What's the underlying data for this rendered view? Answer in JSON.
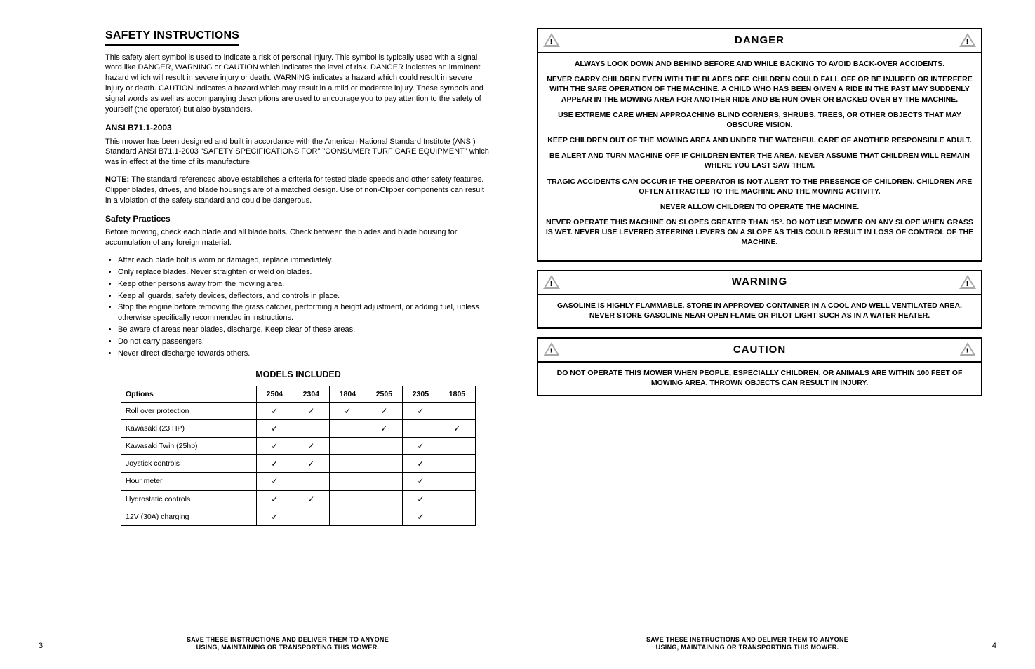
{
  "left": {
    "heading": "SAFETY INSTRUCTIONS",
    "intro": "This safety alert symbol is used to indicate a risk of personal injury. This symbol is typically used with a signal word like DANGER, WARNING or CAUTION which indicates the level of risk. DANGER indicates an imminent hazard which will result in severe injury or death. WARNING indicates a hazard which could result in severe injury or death. CAUTION indicates a hazard which may result in a mild or moderate injury. These symbols and signal words as well as accompanying descriptions are used to encourage you to pay attention to the safety of yourself (the operator) but also bystanders.",
    "section1_title": "ANSI B71.1-2003",
    "section1_note": "NOTE: ",
    "section1_note_body": "The standard referenced above establishes a criteria for tested blade speeds and other safety features. Clipper blades, drives, and blade housings are of a matched design. Use of non-Clipper components can result in a violation of the safety standard and could be dangerous.",
    "section2_lead": "This mower has been designed and built in accordance with the American National Standard Institute (ANSI) Standard ANSI B71.1-2003 \"SAFETY SPECIFICATIONS FOR\" \"CONSUMER TURF CARE EQUIPMENT\" which was in effect at the time of its manufacture.",
    "section3_title": "Safety Practices",
    "section3_body": "Before mowing, check each blade and all blade bolts. Check between the blades and blade housing for accumulation of any foreign material.",
    "table_title": "MODELS INCLUDED",
    "table": {
      "col_header": "Options",
      "cols": [
        "2504",
        "2304",
        "1804",
        "2505",
        "2305",
        "1805"
      ],
      "rows": [
        {
          "label": "Roll over protection",
          "checks": [
            true,
            true,
            true,
            true,
            true,
            false
          ]
        },
        {
          "label": "Kawasaki (23 HP)",
          "checks": [
            true,
            false,
            false,
            true,
            false,
            true
          ]
        },
        {
          "label": "Kawasaki Twin (25hp)",
          "checks": [
            true,
            true,
            false,
            false,
            true,
            false
          ]
        },
        {
          "label": "Joystick controls",
          "checks": [
            true,
            true,
            false,
            false,
            true,
            false
          ]
        },
        {
          "label": "Hour meter",
          "checks": [
            true,
            false,
            false,
            false,
            true,
            false
          ]
        },
        {
          "label": "Hydrostatic controls",
          "checks": [
            true,
            true,
            false,
            false,
            true,
            false
          ]
        },
        {
          "label": "12V (30A) charging",
          "checks": [
            true,
            false,
            false,
            false,
            true,
            false
          ]
        }
      ]
    }
  },
  "right": {
    "alerts": [
      {
        "title": "DANGER",
        "items": [
          "ALWAYS LOOK DOWN AND BEHIND BEFORE AND WHILE BACKING TO AVOID BACK-OVER ACCIDENTS.",
          "NEVER CARRY CHILDREN EVEN WITH THE BLADES OFF. CHILDREN COULD FALL OFF OR BE INJURED OR INTERFERE WITH THE SAFE OPERATION OF THE MACHINE. A CHILD WHO HAS BEEN GIVEN A RIDE IN THE PAST MAY SUDDENLY APPEAR IN THE MOWING AREA FOR ANOTHER RIDE AND BE RUN OVER OR BACKED OVER BY THE MACHINE.",
          "USE EXTREME CARE WHEN APPROACHING BLIND CORNERS, SHRUBS, TREES, OR OTHER OBJECTS THAT MAY OBSCURE VISION.",
          "KEEP CHILDREN OUT OF THE MOWING AREA AND UNDER THE WATCHFUL CARE OF ANOTHER RESPONSIBLE ADULT.",
          "BE ALERT AND TURN MACHINE OFF IF CHILDREN ENTER THE AREA. NEVER ASSUME THAT CHILDREN WILL REMAIN WHERE YOU LAST SAW THEM.",
          "TRAGIC ACCIDENTS CAN OCCUR IF THE OPERATOR IS NOT ALERT TO THE PRESENCE OF CHILDREN. CHILDREN ARE OFTEN ATTRACTED TO THE MACHINE AND THE MOWING ACTIVITY.",
          "NEVER ALLOW CHILDREN TO OPERATE THE MACHINE.",
          "NEVER OPERATE THIS MACHINE ON SLOPES GREATER THAN 15°. DO NOT USE MOWER ON ANY SLOPE WHEN GRASS IS WET. NEVER USE LEVERED STEERING LEVERS ON A SLOPE AS THIS COULD RESULT IN LOSS OF CONTROL OF THE MACHINE."
        ],
        "style": "danger"
      },
      {
        "title": "WARNING",
        "body": "GASOLINE IS HIGHLY FLAMMABLE. STORE IN APPROVED CONTAINER IN A COOL AND WELL VENTILATED AREA. NEVER STORE GASOLINE NEAR OPEN FLAME OR PILOT LIGHT SUCH AS IN A WATER HEATER.",
        "style": "body"
      },
      {
        "title": "CAUTION",
        "body": "DO NOT OPERATE THIS MOWER WHEN PEOPLE, ESPECIALLY CHILDREN, OR ANIMALS ARE WITHIN 100 FEET OF MOWING AREA. THROWN OBJECTS CAN RESULT IN INJURY.",
        "style": "body"
      }
    ]
  },
  "footer": {
    "left_page": "3",
    "right_page": "4",
    "line1": "SAVE THESE INSTRUCTIONS AND DELIVER THEM TO ANYONE",
    "line2": "USING, MAINTAINING OR TRANSPORTING THIS MOWER."
  },
  "colors": {
    "border": "#000000",
    "icon_fill": "#a9a9a9",
    "background": "#ffffff"
  }
}
